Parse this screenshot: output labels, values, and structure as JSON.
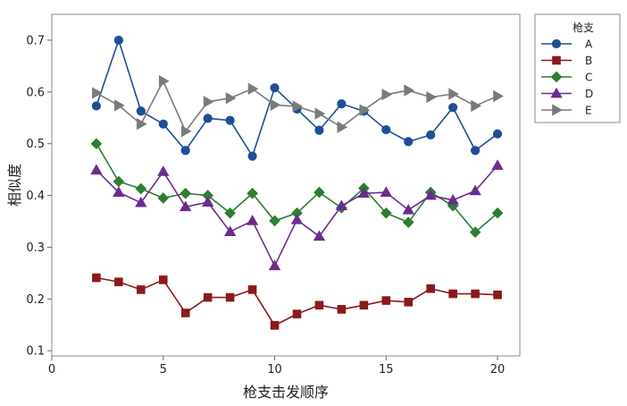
{
  "chart_data": {
    "type": "line",
    "xlabel": "枪支击发顺序",
    "ylabel": "相似度",
    "xlim": [
      0,
      21
    ],
    "ylim": [
      0.09,
      0.75
    ],
    "xticks": [
      0,
      5,
      10,
      15,
      20
    ],
    "yticks": [
      0.1,
      0.2,
      0.3,
      0.4,
      0.5,
      0.6,
      0.7
    ],
    "x": [
      2,
      3,
      4,
      5,
      6,
      7,
      8,
      9,
      10,
      11,
      12,
      13,
      14,
      15,
      16,
      17,
      18,
      19,
      20
    ],
    "legend": {
      "title": "枪支",
      "placement": "top-right-outside"
    },
    "series": [
      {
        "name": "A",
        "color": "#1f4e96",
        "marker": "circle",
        "values": [
          0.573,
          0.7,
          0.563,
          0.538,
          0.487,
          0.549,
          0.545,
          0.476,
          0.608,
          0.567,
          0.526,
          0.577,
          0.563,
          0.527,
          0.504,
          0.517,
          0.57,
          0.487,
          0.519
        ]
      },
      {
        "name": "B",
        "color": "#8b1a1a",
        "marker": "square",
        "values": [
          0.241,
          0.233,
          0.218,
          0.237,
          0.173,
          0.203,
          0.203,
          0.218,
          0.149,
          0.171,
          0.188,
          0.18,
          0.188,
          0.197,
          0.194,
          0.22,
          0.21,
          0.21,
          0.208
        ]
      },
      {
        "name": "C",
        "color": "#2e7d32",
        "marker": "diamond",
        "values": [
          0.5,
          0.427,
          0.413,
          0.395,
          0.404,
          0.4,
          0.366,
          0.404,
          0.351,
          0.366,
          0.406,
          0.376,
          0.414,
          0.366,
          0.348,
          0.406,
          0.38,
          0.329,
          0.366
        ]
      },
      {
        "name": "D",
        "color": "#6a2c8f",
        "marker": "triangle-up",
        "values": [
          0.449,
          0.406,
          0.386,
          0.446,
          0.378,
          0.387,
          0.33,
          0.351,
          0.264,
          0.353,
          0.321,
          0.38,
          0.404,
          0.406,
          0.372,
          0.4,
          0.391,
          0.409,
          0.458
        ]
      },
      {
        "name": "E",
        "color": "#7a7a7a",
        "marker": "triangle-right",
        "values": [
          0.598,
          0.574,
          0.538,
          0.621,
          0.524,
          0.581,
          0.588,
          0.606,
          0.575,
          0.572,
          0.558,
          0.532,
          0.565,
          0.595,
          0.603,
          0.59,
          0.596,
          0.573,
          0.592
        ]
      }
    ]
  }
}
